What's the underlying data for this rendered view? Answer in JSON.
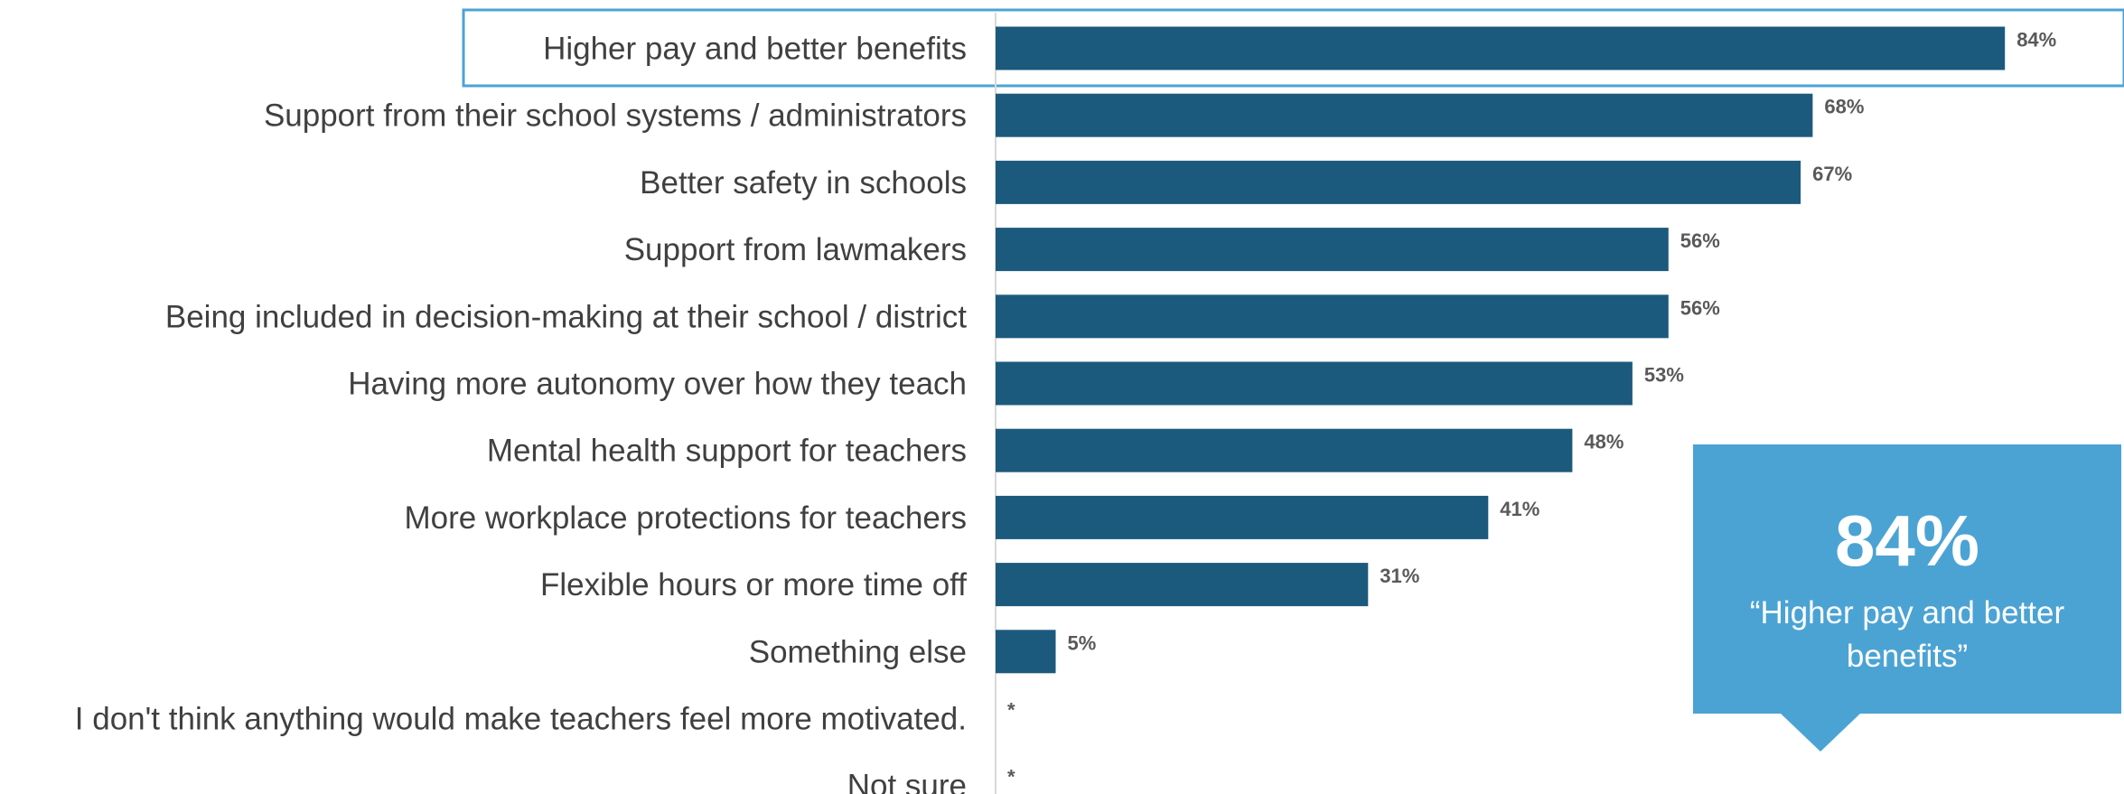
{
  "chart_data": {
    "type": "bar",
    "orientation": "horizontal",
    "categories": [
      "Higher pay and better benefits",
      "Support from their school systems / administrators",
      "Better safety in schools",
      "Support from lawmakers",
      "Being included in decision-making at their school / district",
      "Having more autonomy over how they teach",
      "Mental health support for teachers",
      "More workplace protections for teachers",
      "Flexible hours or more time off",
      "Something else",
      "I don't think anything would make teachers feel more motivated.",
      "Not sure"
    ],
    "values": [
      84,
      68,
      67,
      56,
      56,
      53,
      48,
      41,
      31,
      5,
      0,
      0
    ],
    "value_labels": [
      "84%",
      "68%",
      "67%",
      "56%",
      "56%",
      "53%",
      "48%",
      "41%",
      "31%",
      "5%",
      "*",
      "*"
    ],
    "highlighted_category": "Higher pay and better benefits",
    "xlim": [
      0,
      100
    ],
    "grid": false,
    "legend": "none",
    "bar_color": "#1c5a7d",
    "title": "",
    "xlabel": "",
    "ylabel": ""
  },
  "callout": {
    "value": "84%",
    "text_line1": "“Higher pay and better",
    "text_line2": "benefits”",
    "color": "#4ba3d4"
  },
  "colors": {
    "highlight_border": "#4ba3d4",
    "axis_line": "#d9d9d9",
    "label_text": "#404040",
    "value_text": "#595959"
  }
}
